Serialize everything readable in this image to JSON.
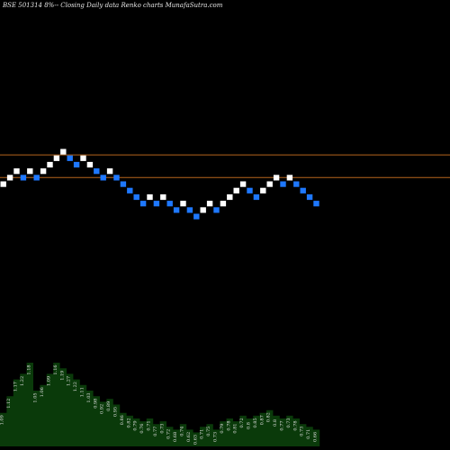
{
  "chart_data": {
    "type": "renko",
    "title": "BSE 501314  8%-- Closing Daily data  Renko  charts MunafaSutra.com",
    "colors": {
      "background": "#000000",
      "up_brick": "#ffffff",
      "down_brick": "#1e78ff",
      "reference_line": "#b5651d",
      "volume_fill": "#0a3a0a",
      "label": "#e0e0e0"
    },
    "reference_lines": [
      {
        "level": 9.5
      },
      {
        "level": 6.0
      }
    ],
    "y_levels_range": [
      0,
      30
    ],
    "bricks": [
      {
        "dir": "up",
        "level": 5
      },
      {
        "dir": "up",
        "level": 6
      },
      {
        "dir": "up",
        "level": 7
      },
      {
        "dir": "down",
        "level": 6
      },
      {
        "dir": "up",
        "level": 7
      },
      {
        "dir": "down",
        "level": 6
      },
      {
        "dir": "up",
        "level": 7
      },
      {
        "dir": "up",
        "level": 8
      },
      {
        "dir": "up",
        "level": 9
      },
      {
        "dir": "up",
        "level": 10
      },
      {
        "dir": "down",
        "level": 9
      },
      {
        "dir": "down",
        "level": 8
      },
      {
        "dir": "up",
        "level": 9
      },
      {
        "dir": "up",
        "level": 8
      },
      {
        "dir": "down",
        "level": 7
      },
      {
        "dir": "down",
        "level": 6
      },
      {
        "dir": "up",
        "level": 7
      },
      {
        "dir": "down",
        "level": 6
      },
      {
        "dir": "down",
        "level": 5
      },
      {
        "dir": "down",
        "level": 4
      },
      {
        "dir": "down",
        "level": 3
      },
      {
        "dir": "down",
        "level": 2
      },
      {
        "dir": "up",
        "level": 3
      },
      {
        "dir": "down",
        "level": 2
      },
      {
        "dir": "up",
        "level": 3
      },
      {
        "dir": "down",
        "level": 2
      },
      {
        "dir": "down",
        "level": 1
      },
      {
        "dir": "up",
        "level": 2
      },
      {
        "dir": "down",
        "level": 1
      },
      {
        "dir": "down",
        "level": 0
      },
      {
        "dir": "up",
        "level": 1
      },
      {
        "dir": "up",
        "level": 2
      },
      {
        "dir": "down",
        "level": 1
      },
      {
        "dir": "up",
        "level": 2
      },
      {
        "dir": "up",
        "level": 3
      },
      {
        "dir": "up",
        "level": 4
      },
      {
        "dir": "up",
        "level": 5
      },
      {
        "dir": "down",
        "level": 4
      },
      {
        "dir": "down",
        "level": 3
      },
      {
        "dir": "up",
        "level": 4
      },
      {
        "dir": "up",
        "level": 5
      },
      {
        "dir": "up",
        "level": 6
      },
      {
        "dir": "down",
        "level": 5
      },
      {
        "dir": "up",
        "level": 6
      },
      {
        "dir": "down",
        "level": 5
      },
      {
        "dir": "down",
        "level": 4
      },
      {
        "dir": "down",
        "level": 3
      },
      {
        "dir": "down",
        "level": 2
      }
    ],
    "volume": [
      0.6,
      0.9,
      1.2,
      1.3,
      1.5,
      1.0,
      1.1,
      1.3,
      1.5,
      1.4,
      1.3,
      1.2,
      1.1,
      1.0,
      0.9,
      0.8,
      0.85,
      0.75,
      0.6,
      0.55,
      0.5,
      0.45,
      0.5,
      0.4,
      0.45,
      0.35,
      0.3,
      0.4,
      0.3,
      0.25,
      0.35,
      0.4,
      0.3,
      0.45,
      0.5,
      0.45,
      0.55,
      0.5,
      0.55,
      0.6,
      0.65,
      0.55,
      0.5,
      0.55,
      0.5,
      0.4,
      0.35,
      0.3
    ],
    "volume_labels": [
      "1.09",
      "1.12",
      "1.17",
      "1.22",
      "1.18",
      "1.05",
      "1.06",
      "1.09",
      "1.16",
      "1.19",
      "1.27",
      "1.22",
      "1.11",
      "1.03",
      "0.98",
      "0.92",
      "0.89",
      "0.95",
      "0.86",
      "0.82",
      "0.79",
      "0.76",
      "0.71",
      "0.77",
      "0.73",
      "0.72",
      "0.68",
      "0.74",
      "0.62",
      "0.63",
      "0.71",
      "0.75",
      "0.73",
      "0.79",
      "0.78",
      "0.81",
      "0.72",
      "0.8",
      "0.85",
      "0.87",
      "0.82",
      "0.8",
      "0.77",
      "0.73",
      "0.78",
      "0.73",
      "0.71",
      "0.66"
    ]
  }
}
